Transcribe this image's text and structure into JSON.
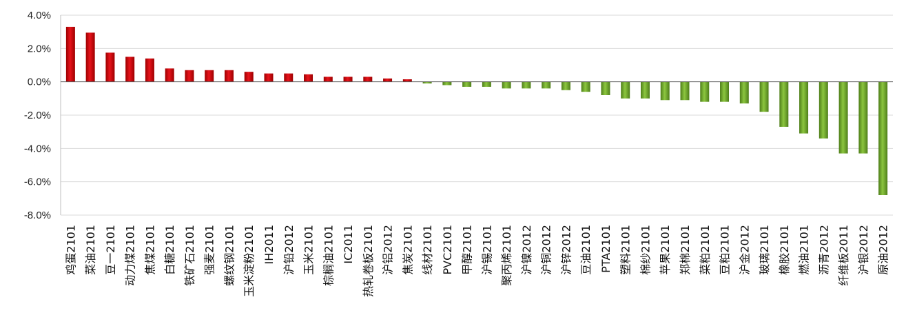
{
  "chart_data": {
    "type": "bar",
    "title": "",
    "xlabel": "",
    "ylabel": "",
    "ylim": [
      -8,
      4
    ],
    "ytick_step": 2,
    "ytick_format": "percent_1dp",
    "grid": "horizontal",
    "legend": "none",
    "colors": {
      "positive": "#e8131b",
      "positive_dark": "#9c0000",
      "negative": "#8cc63f",
      "negative_dark": "#4e7e1a",
      "grid": "#d9d9d9",
      "zero_line": "#595959"
    },
    "categories": [
      "鸡蛋2101",
      "菜油2101",
      "豆一2101",
      "动力煤2101",
      "焦煤2101",
      "白糖2101",
      "铁矿石2101",
      "强麦2101",
      "螺纹钢2101",
      "玉米淀粉2101",
      "IH2011",
      "沪铅2012",
      "玉米2101",
      "棕榈油2101",
      "IC2011",
      "热轧卷板2101",
      "沪铝2012",
      "焦炭2101",
      "线材2101",
      "PVC2101",
      "甲醇2101",
      "沪锡2101",
      "聚丙烯2101",
      "沪镍2012",
      "沪铜2012",
      "沪锌2012",
      "豆油2101",
      "PTA2101",
      "塑料2101",
      "棉纱2101",
      "苹果2101",
      "郑棉2101",
      "菜粕2101",
      "豆粕2101",
      "沪金2012",
      "玻璃2101",
      "橡胶2101",
      "燃油2101",
      "沥青2012",
      "纤维板2011",
      "沪银2012",
      "原油2012"
    ],
    "values": [
      3.3,
      2.95,
      1.75,
      1.5,
      1.4,
      0.8,
      0.7,
      0.7,
      0.7,
      0.6,
      0.5,
      0.5,
      0.45,
      0.3,
      0.3,
      0.3,
      0.2,
      0.15,
      -0.1,
      -0.2,
      -0.3,
      -0.3,
      -0.4,
      -0.4,
      -0.4,
      -0.5,
      -0.6,
      -0.8,
      -1.0,
      -1.0,
      -1.1,
      -1.1,
      -1.2,
      -1.2,
      -1.3,
      -1.8,
      -2.7,
      -3.1,
      -3.4,
      -4.3,
      -4.3,
      -6.8
    ]
  }
}
